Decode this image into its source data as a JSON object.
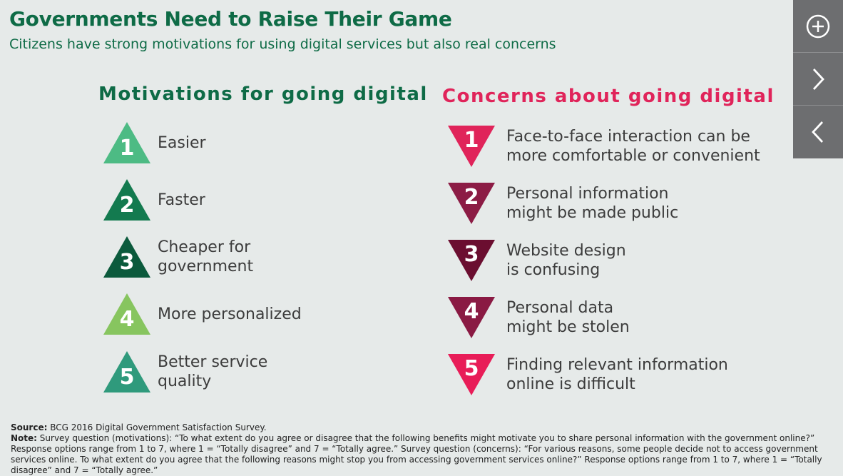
{
  "title": "Governments Need to Raise Their Game",
  "subtitle": "Citizens have strong motivations for using digital services but also real concerns",
  "motivations": {
    "heading": "Motivations for going digital",
    "items": [
      {
        "num": "1",
        "label": "Easier",
        "color": "#4dbb84"
      },
      {
        "num": "2",
        "label": "Faster",
        "color": "#137a4f"
      },
      {
        "num": "3",
        "label": "Cheaper for\ngovernment",
        "color": "#0b5a3c"
      },
      {
        "num": "4",
        "label": "More personalized",
        "color": "#87c55f"
      },
      {
        "num": "5",
        "label": "Better service\nquality",
        "color": "#2f9a7c"
      }
    ]
  },
  "concerns": {
    "heading": "Concerns about going digital",
    "items": [
      {
        "num": "1",
        "label": "Face-to-face interaction can be\nmore comfortable or convenient",
        "color": "#e0245a"
      },
      {
        "num": "2",
        "label": "Personal information\nmight be made public",
        "color": "#8c1c45"
      },
      {
        "num": "3",
        "label": "Website design\nis confusing",
        "color": "#6b0e30"
      },
      {
        "num": "4",
        "label": "Personal data\nmight be stolen",
        "color": "#8a1a43"
      },
      {
        "num": "5",
        "label": "Finding relevant information\nonline is difficult",
        "color": "#e81d58"
      }
    ]
  },
  "footer": {
    "source_label": "Source:",
    "source_text": " BCG 2016 Digital Government Satisfaction Survey.",
    "note_label": "Note:",
    "note_text": " Survey question (motivations): “To what extent do you agree or disagree that the following benefits might motivate you to share personal information with the government online?” Response options range from 1 to 7, where 1 = “Totally disagree” and 7 = “Totally agree.” Survey question (concerns): “For various reasons, some people decide not to access government services online. To what extent do you agree that the following reasons might stop you from accessing government services online?” Response options range from 1 to 7, where 1 = “Totally disagree” and 7 = “Totally agree.”"
  },
  "sidebar": {
    "buttons": [
      {
        "icon": "plus-circle-icon"
      },
      {
        "icon": "chevron-right-icon"
      },
      {
        "icon": "chevron-left-icon"
      }
    ],
    "background": "#6d6e70"
  }
}
